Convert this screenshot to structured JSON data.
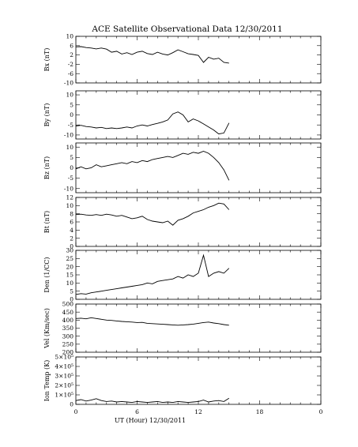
{
  "title": "ACE Satellite Observational Data   12/30/2011",
  "xlabel": "UT (Hour)  12/30/2011",
  "x_ticks": [
    "0",
    "6",
    "12",
    "18",
    "0"
  ],
  "chart_data": [
    {
      "type": "line",
      "ylabel": "Bx (nT)",
      "xlim": [
        0,
        24
      ],
      "ylim": [
        -10,
        10
      ],
      "yticks": [
        "10",
        "6",
        "2",
        "-2",
        "-6",
        "-10"
      ],
      "ytick_values": [
        10,
        6,
        2,
        -2,
        -6,
        -10
      ],
      "series": [
        {
          "x": [
            0,
            0.5,
            1,
            1.5,
            2,
            2.5,
            3,
            3.5,
            4,
            4.5,
            5,
            5.5,
            6,
            6.5,
            7,
            7.5,
            8,
            8.5,
            9,
            9.5,
            10,
            10.5,
            11,
            11.5,
            12,
            12.5,
            13,
            13.5,
            14,
            14.5,
            15
          ],
          "y": [
            5.5,
            5.6,
            5.2,
            5.0,
            4.6,
            5.0,
            4.5,
            3.2,
            3.6,
            2.4,
            3.0,
            2.2,
            3.2,
            3.6,
            2.6,
            2.2,
            3.2,
            2.4,
            2.0,
            3.0,
            4.2,
            3.4,
            2.5,
            2.2,
            1.8,
            -1.2,
            1.0,
            0.2,
            0.6,
            -1.2,
            -1.5
          ]
        }
      ]
    },
    {
      "type": "line",
      "ylabel": "By (nT)",
      "xlim": [
        0,
        24
      ],
      "ylim": [
        -12,
        12
      ],
      "yticks": [
        "10",
        "5",
        "0",
        "-5",
        "-10"
      ],
      "ytick_values": [
        10,
        5,
        0,
        -5,
        -10
      ],
      "series": [
        {
          "x": [
            0,
            0.5,
            1,
            1.5,
            2,
            2.5,
            3,
            3.5,
            4,
            4.5,
            5,
            5.5,
            6,
            6.5,
            7,
            7.5,
            8,
            8.5,
            9,
            9.5,
            10,
            10.5,
            11,
            11.5,
            12,
            12.5,
            13,
            13.5,
            14,
            14.5,
            15
          ],
          "y": [
            -5.5,
            -5.2,
            -5.8,
            -6.0,
            -6.5,
            -6.2,
            -6.8,
            -6.5,
            -6.8,
            -6.5,
            -6.0,
            -6.5,
            -5.5,
            -5.0,
            -5.5,
            -4.8,
            -4.2,
            -3.5,
            -2.5,
            0.5,
            1.5,
            0.0,
            -3.5,
            -2.0,
            -3.0,
            -4.5,
            -6.0,
            -7.5,
            -9.5,
            -9.0,
            -4.0
          ]
        }
      ]
    },
    {
      "type": "line",
      "ylabel": "Bz (nT)",
      "xlim": [
        0,
        24
      ],
      "ylim": [
        -12,
        12
      ],
      "yticks": [
        "10",
        "5",
        "0",
        "-5",
        "-10"
      ],
      "ytick_values": [
        10,
        5,
        0,
        -5,
        -10
      ],
      "series": [
        {
          "x": [
            0,
            0.5,
            1,
            1.5,
            2,
            2.5,
            3,
            3.5,
            4,
            4.5,
            5,
            5.5,
            6,
            6.5,
            7,
            7.5,
            8,
            8.5,
            9,
            9.5,
            10,
            10.5,
            11,
            11.5,
            12,
            12.5,
            13,
            13.5,
            14,
            14.5,
            15
          ],
          "y": [
            -0.5,
            0.5,
            -0.5,
            0.0,
            1.5,
            0.5,
            1.0,
            1.5,
            2.0,
            2.5,
            2.0,
            3.0,
            2.5,
            3.5,
            3.0,
            4.0,
            4.5,
            5.0,
            5.5,
            5.0,
            6.0,
            7.0,
            6.5,
            7.5,
            7.0,
            8.0,
            7.0,
            5.0,
            2.5,
            -1.0,
            -6.0
          ]
        }
      ]
    },
    {
      "type": "line",
      "ylabel": "Bt (nT)",
      "xlim": [
        0,
        24
      ],
      "ylim": [
        0,
        12
      ],
      "yticks": [
        "12",
        "10",
        "8",
        "6",
        "4",
        "2",
        "0"
      ],
      "ytick_values": [
        12,
        10,
        8,
        6,
        4,
        2,
        0
      ],
      "series": [
        {
          "x": [
            0,
            0.5,
            1,
            1.5,
            2,
            2.5,
            3,
            3.5,
            4,
            4.5,
            5,
            5.5,
            6,
            6.5,
            7,
            7.5,
            8,
            8.5,
            9,
            9.5,
            10,
            10.5,
            11,
            11.5,
            12,
            12.5,
            13,
            13.5,
            14,
            14.5,
            15
          ],
          "y": [
            7.8,
            7.9,
            7.7,
            7.6,
            7.8,
            7.6,
            7.9,
            7.7,
            7.4,
            7.6,
            7.2,
            6.8,
            7.0,
            7.4,
            6.6,
            6.2,
            6.0,
            5.8,
            6.2,
            5.2,
            6.4,
            6.8,
            7.4,
            8.2,
            8.6,
            9.0,
            9.6,
            10.0,
            10.6,
            10.4,
            9.0
          ]
        }
      ]
    },
    {
      "type": "line",
      "ylabel": "Den (1/CC)",
      "xlim": [
        0,
        24
      ],
      "ylim": [
        0,
        30
      ],
      "yticks": [
        "30",
        "25",
        "20",
        "15",
        "10",
        "5",
        "0"
      ],
      "ytick_values": [
        30,
        25,
        20,
        15,
        10,
        5,
        0
      ],
      "series": [
        {
          "x": [
            0,
            0.5,
            1,
            1.5,
            2,
            2.5,
            3,
            3.5,
            4,
            4.5,
            5,
            5.5,
            6,
            6.5,
            7,
            7.5,
            8,
            8.5,
            9,
            9.5,
            10,
            10.5,
            11,
            11.5,
            12,
            12.5,
            13,
            13.5,
            14,
            14.5,
            15
          ],
          "y": [
            3.0,
            3.5,
            3.2,
            4.0,
            4.5,
            5.0,
            5.5,
            6.0,
            6.5,
            7.0,
            7.5,
            8.0,
            8.5,
            9.0,
            10.0,
            9.5,
            11.0,
            11.5,
            12.0,
            12.5,
            14.0,
            13.0,
            15.0,
            14.0,
            16.0,
            27.0,
            14.0,
            16.0,
            17.0,
            16.0,
            19.0
          ]
        }
      ]
    },
    {
      "type": "line",
      "ylabel": "Vel (Km/sec)",
      "xlim": [
        0,
        24
      ],
      "ylim": [
        200,
        500
      ],
      "yticks": [
        "500",
        "450",
        "400",
        "350",
        "300",
        "250",
        "200"
      ],
      "ytick_values": [
        500,
        450,
        400,
        350,
        300,
        250,
        200
      ],
      "series": [
        {
          "x": [
            0,
            0.5,
            1,
            1.5,
            2,
            2.5,
            3,
            3.5,
            4,
            4.5,
            5,
            5.5,
            6,
            6.5,
            7,
            7.5,
            8,
            8.5,
            9,
            9.5,
            10,
            10.5,
            11,
            11.5,
            12,
            12.5,
            13,
            13.5,
            14,
            14.5,
            15
          ],
          "y": [
            410,
            412,
            408,
            415,
            410,
            405,
            400,
            398,
            395,
            392,
            390,
            388,
            385,
            386,
            380,
            378,
            376,
            374,
            372,
            370,
            368,
            370,
            372,
            375,
            380,
            385,
            388,
            382,
            378,
            372,
            368
          ]
        }
      ]
    },
    {
      "type": "line",
      "ylabel": "Ion Temp (K)",
      "xlim": [
        0,
        24
      ],
      "ylim": [
        0,
        500000
      ],
      "yticks": [
        "5×10⁵",
        "4×10⁵",
        "3×10⁵",
        "2×10⁵",
        "1×10⁵",
        "0"
      ],
      "ytick_values": [
        500000,
        400000,
        300000,
        200000,
        100000,
        0
      ],
      "series": [
        {
          "x": [
            0,
            0.5,
            1,
            1.5,
            2,
            2.5,
            3,
            3.5,
            4,
            4.5,
            5,
            5.5,
            6,
            6.5,
            7,
            7.5,
            8,
            8.5,
            9,
            9.5,
            10,
            10.5,
            11,
            11.5,
            12,
            12.5,
            13,
            13.5,
            14,
            14.5,
            15
          ],
          "y": [
            40000,
            50000,
            35000,
            45000,
            60000,
            40000,
            30000,
            35000,
            25000,
            30000,
            25000,
            20000,
            30000,
            25000,
            20000,
            25000,
            30000,
            20000,
            25000,
            20000,
            30000,
            25000,
            20000,
            25000,
            30000,
            45000,
            25000,
            35000,
            40000,
            30000,
            65000
          ]
        }
      ]
    }
  ]
}
